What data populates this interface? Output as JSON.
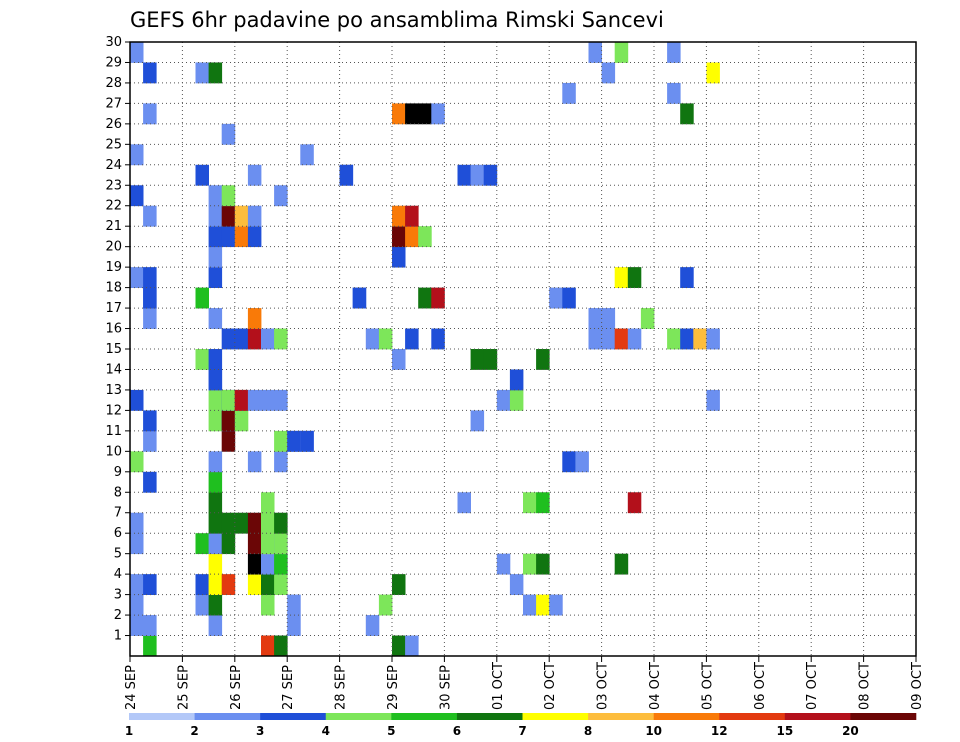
{
  "chart_data": {
    "type": "heatmap",
    "title": "GEFS 6hr padavine po ansamblima Rimski Sancevi",
    "x_tick_labels": [
      "24 SEP",
      "25 SEP",
      "26 SEP",
      "27 SEP",
      "28 SEP",
      "29 SEP",
      "30 SEP",
      "01 OCT",
      "02 OCT",
      "03 OCT",
      "04 OCT",
      "05 OCT",
      "06 OCT",
      "07 OCT",
      "08 OCT",
      "09 OCT"
    ],
    "y_tick_labels": [
      "1",
      "2",
      "3",
      "4",
      "5",
      "6",
      "7",
      "8",
      "9",
      "10",
      "11",
      "12",
      "13",
      "14",
      "15",
      "16",
      "17",
      "18",
      "19",
      "20",
      "21",
      "22",
      "23",
      "24",
      "25",
      "26",
      "27",
      "28",
      "29",
      "30"
    ],
    "x_unit": "6-hour steps from 24 SEP 00Z",
    "x_range": [
      0,
      60
    ],
    "y_range": [
      0,
      30
    ],
    "grid": true,
    "legend_levels": [
      "1",
      "2",
      "3",
      "4",
      "5",
      "6",
      "7",
      "8",
      "10",
      "12",
      "15",
      "20"
    ],
    "legend_colors": [
      "#b3c8f8",
      "#6b8ff0",
      "#1f4fd8",
      "#7de65a",
      "#1fbf1f",
      "#107510",
      "#ffff00",
      "#fdbd3c",
      "#f97a08",
      "#e33a10",
      "#b3101b",
      "#6b0606"
    ],
    "cells": [
      [
        0,
        1,
        1
      ],
      [
        0,
        2,
        1
      ],
      [
        0,
        3,
        1
      ],
      [
        0,
        5,
        1
      ],
      [
        0,
        6,
        1
      ],
      [
        0,
        9,
        3
      ],
      [
        0,
        12,
        2
      ],
      [
        0,
        18,
        1
      ],
      [
        0,
        22,
        2
      ],
      [
        0,
        24,
        1
      ],
      [
        0,
        29,
        1
      ],
      [
        1,
        0,
        4
      ],
      [
        1,
        1,
        1
      ],
      [
        1,
        3,
        2
      ],
      [
        1,
        8,
        2
      ],
      [
        1,
        10,
        1
      ],
      [
        1,
        11,
        2
      ],
      [
        1,
        16,
        1
      ],
      [
        1,
        17,
        1
      ],
      [
        1,
        17,
        2
      ],
      [
        1,
        18,
        2
      ],
      [
        1,
        21,
        1
      ],
      [
        1,
        26,
        1
      ],
      [
        1,
        28,
        2
      ],
      [
        5,
        2,
        1
      ],
      [
        5,
        3,
        2
      ],
      [
        5,
        5,
        4
      ],
      [
        5,
        14,
        3
      ],
      [
        5,
        17,
        4
      ],
      [
        5,
        23,
        2
      ],
      [
        5,
        28,
        1
      ],
      [
        6,
        1,
        1
      ],
      [
        6,
        2,
        5
      ],
      [
        6,
        3,
        1
      ],
      [
        6,
        3,
        6
      ],
      [
        6,
        4,
        6
      ],
      [
        6,
        5,
        1
      ],
      [
        6,
        6,
        5
      ],
      [
        6,
        7,
        5
      ],
      [
        6,
        8,
        4
      ],
      [
        6,
        9,
        1
      ],
      [
        6,
        11,
        3
      ],
      [
        6,
        12,
        3
      ],
      [
        6,
        13,
        1
      ],
      [
        6,
        13,
        2
      ],
      [
        6,
        14,
        2
      ],
      [
        6,
        16,
        1
      ],
      [
        6,
        18,
        2
      ],
      [
        6,
        19,
        1
      ],
      [
        6,
        20,
        2
      ],
      [
        6,
        21,
        1
      ],
      [
        6,
        22,
        1
      ],
      [
        6,
        28,
        5
      ],
      [
        7,
        3,
        9
      ],
      [
        7,
        5,
        5
      ],
      [
        7,
        6,
        5
      ],
      [
        7,
        10,
        11
      ],
      [
        7,
        11,
        2
      ],
      [
        7,
        11,
        11
      ],
      [
        7,
        12,
        2
      ],
      [
        7,
        12,
        3
      ],
      [
        7,
        15,
        2
      ],
      [
        7,
        20,
        2
      ],
      [
        7,
        21,
        11
      ],
      [
        7,
        22,
        3
      ],
      [
        7,
        25,
        1
      ],
      [
        8,
        6,
        5
      ],
      [
        8,
        11,
        3
      ],
      [
        8,
        12,
        9
      ],
      [
        8,
        12,
        10
      ],
      [
        8,
        15,
        2
      ],
      [
        8,
        20,
        8
      ],
      [
        8,
        21,
        7
      ],
      [
        9,
        3,
        6
      ],
      [
        9,
        4,
        12
      ],
      [
        9,
        5,
        11
      ],
      [
        9,
        6,
        11
      ],
      [
        9,
        9,
        1
      ],
      [
        9,
        12,
        1
      ],
      [
        9,
        15,
        10
      ],
      [
        9,
        16,
        8
      ],
      [
        9,
        20,
        2
      ],
      [
        9,
        21,
        1
      ],
      [
        9,
        23,
        1
      ],
      [
        10,
        0,
        2
      ],
      [
        10,
        0,
        11
      ],
      [
        10,
        0,
        9
      ],
      [
        10,
        2,
        3
      ],
      [
        10,
        3,
        5
      ],
      [
        10,
        4,
        2
      ],
      [
        10,
        4,
        1
      ],
      [
        10,
        5,
        6
      ],
      [
        10,
        5,
        3
      ],
      [
        10,
        6,
        3
      ],
      [
        10,
        7,
        3
      ],
      [
        10,
        12,
        1
      ],
      [
        10,
        15,
        1
      ],
      [
        11,
        0,
        5
      ],
      [
        11,
        3,
        3
      ],
      [
        11,
        4,
        1
      ],
      [
        11,
        4,
        4
      ],
      [
        11,
        5,
        1
      ],
      [
        11,
        5,
        3
      ],
      [
        11,
        6,
        5
      ],
      [
        11,
        9,
        1
      ],
      [
        11,
        10,
        3
      ],
      [
        11,
        12,
        1
      ],
      [
        11,
        15,
        3
      ],
      [
        11,
        22,
        1
      ],
      [
        12,
        1,
        1
      ],
      [
        12,
        2,
        1
      ],
      [
        12,
        10,
        1
      ],
      [
        12,
        10,
        2
      ],
      [
        13,
        10,
        1
      ],
      [
        13,
        10,
        2
      ],
      [
        13,
        24,
        1
      ],
      [
        16,
        23,
        1
      ],
      [
        16,
        23,
        2
      ],
      [
        17,
        17,
        1
      ],
      [
        17,
        17,
        2
      ],
      [
        18,
        1,
        1
      ],
      [
        18,
        15,
        1
      ],
      [
        19,
        2,
        3
      ],
      [
        19,
        15,
        3
      ],
      [
        20,
        0,
        5
      ],
      [
        20,
        3,
        5
      ],
      [
        20,
        14,
        1
      ],
      [
        20,
        19,
        2
      ],
      [
        20,
        20,
        11
      ],
      [
        20,
        21,
        8
      ],
      [
        20,
        26,
        8
      ],
      [
        21,
        0,
        1
      ],
      [
        21,
        15,
        2
      ],
      [
        21,
        20,
        8
      ],
      [
        21,
        21,
        10
      ],
      [
        21,
        26,
        12
      ],
      [
        22,
        20,
        3
      ],
      [
        22,
        26,
        12
      ],
      [
        22,
        17,
        5
      ],
      [
        23,
        15,
        2
      ],
      [
        23,
        17,
        10
      ],
      [
        23,
        26,
        1
      ],
      [
        25,
        7,
        1
      ],
      [
        25,
        23,
        2
      ],
      [
        26,
        23,
        1
      ],
      [
        26,
        14,
        5
      ],
      [
        26,
        11,
        1
      ],
      [
        27,
        14,
        5
      ],
      [
        27,
        23,
        2
      ],
      [
        28,
        12,
        1
      ],
      [
        28,
        4,
        1
      ],
      [
        29,
        12,
        3
      ],
      [
        29,
        13,
        2
      ],
      [
        29,
        3,
        1
      ],
      [
        30,
        4,
        3
      ],
      [
        30,
        7,
        3
      ],
      [
        30,
        2,
        1
      ],
      [
        31,
        2,
        6
      ],
      [
        31,
        4,
        5
      ],
      [
        31,
        7,
        4
      ],
      [
        31,
        14,
        5
      ],
      [
        32,
        2,
        1
      ],
      [
        32,
        17,
        1
      ],
      [
        33,
        17,
        2
      ],
      [
        33,
        9,
        2
      ],
      [
        33,
        27,
        1
      ],
      [
        34,
        9,
        1
      ],
      [
        35,
        16,
        1
      ],
      [
        35,
        15,
        1
      ],
      [
        35,
        29,
        1
      ],
      [
        36,
        16,
        1
      ],
      [
        36,
        15,
        1
      ],
      [
        36,
        28,
        1
      ],
      [
        37,
        4,
        5
      ],
      [
        37,
        15,
        9
      ],
      [
        37,
        18,
        6
      ],
      [
        37,
        29,
        3
      ],
      [
        38,
        15,
        1
      ],
      [
        38,
        18,
        5
      ],
      [
        38,
        7,
        10
      ],
      [
        39,
        16,
        3
      ],
      [
        41,
        15,
        3
      ],
      [
        41,
        27,
        1
      ],
      [
        41,
        29,
        1
      ],
      [
        42,
        15,
        2
      ],
      [
        42,
        18,
        2
      ],
      [
        42,
        26,
        5
      ],
      [
        43,
        15,
        7
      ],
      [
        44,
        15,
        1
      ],
      [
        44,
        28,
        6
      ],
      [
        44,
        12,
        1
      ]
    ]
  }
}
